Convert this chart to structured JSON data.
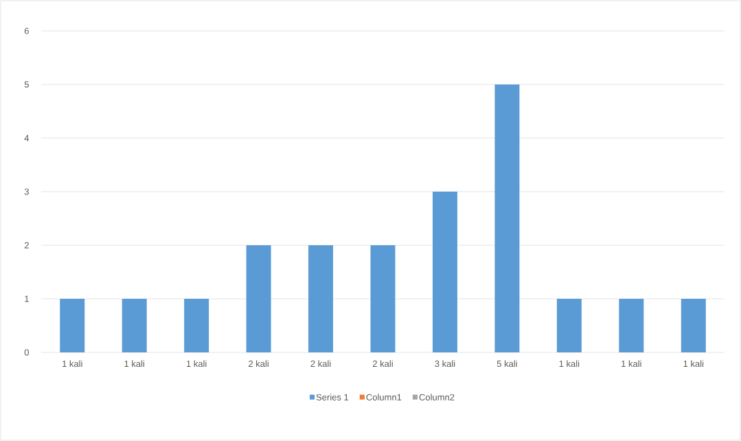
{
  "chart_data": {
    "type": "bar",
    "categories": [
      "1 kali",
      "1 kali",
      "1 kali",
      "2 kali",
      "2 kali",
      "2 kali",
      "3 kali",
      "5 kali",
      "1 kali",
      "1 kali",
      "1 kali"
    ],
    "series": [
      {
        "name": "Series 1",
        "color": "#5b9bd5",
        "values": [
          1,
          1,
          1,
          2,
          2,
          2,
          3,
          5,
          1,
          1,
          1
        ]
      },
      {
        "name": "Column1",
        "color": "#ed7d31",
        "values": [
          null,
          null,
          null,
          null,
          null,
          null,
          null,
          null,
          null,
          null,
          null
        ]
      },
      {
        "name": "Column2",
        "color": "#a5a5a5",
        "values": [
          null,
          null,
          null,
          null,
          null,
          null,
          null,
          null,
          null,
          null,
          null
        ]
      }
    ],
    "ylim": [
      0,
      6
    ],
    "yticks": [
      0,
      1,
      2,
      3,
      4,
      5,
      6
    ],
    "grid": "y",
    "legend": "bottom"
  }
}
